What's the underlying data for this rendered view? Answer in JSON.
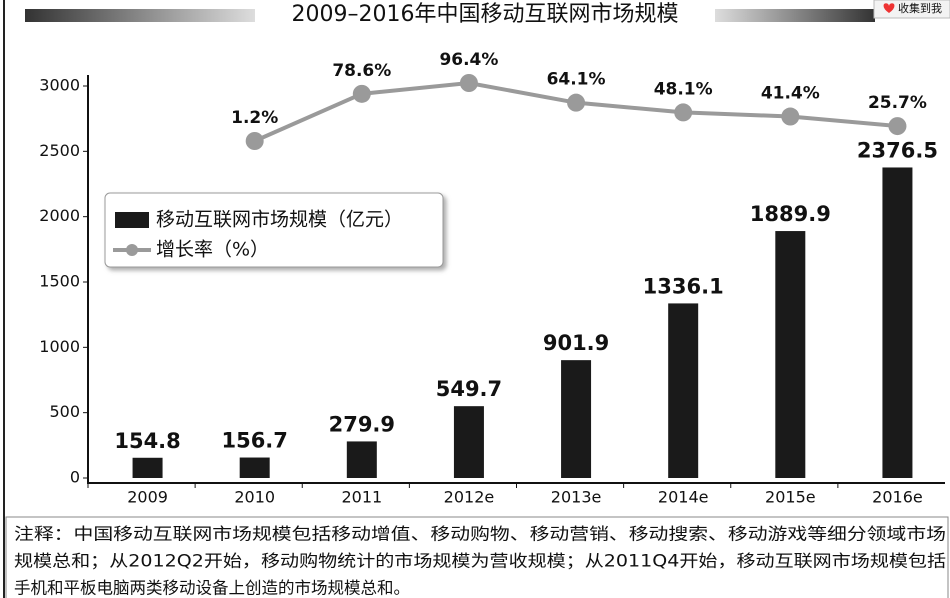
{
  "chart_data": {
    "type": "bar",
    "title": "2009–2016年中国移动互联网市场规模",
    "share_button": "收集到我",
    "categories": [
      "2009",
      "2010",
      "2011",
      "2012e",
      "2013e",
      "2014e",
      "2015e",
      "2016e"
    ],
    "series": [
      {
        "name": "移动互联网市场规模（亿元）",
        "type": "bar",
        "color": "#1a1a1a",
        "values": [
          154.8,
          156.7,
          279.9,
          549.7,
          901.9,
          1336.1,
          1889.9,
          2376.5
        ]
      },
      {
        "name": "增长率（%）",
        "type": "line",
        "color": "#9a9a9a",
        "values": [
          null,
          1.2,
          78.6,
          96.4,
          64.1,
          48.1,
          41.4,
          25.7
        ],
        "value_labels": [
          null,
          "1.2%",
          "78.6%",
          "96.4%",
          "64.1%",
          "48.1%",
          "41.4%",
          "25.7%"
        ]
      }
    ],
    "ylim": [
      0,
      3000
    ],
    "yticks": [
      0,
      500,
      1000,
      1500,
      2000,
      2500,
      3000
    ],
    "note": [
      "注释：中国移动互联网市场规模包括移动增值、移动购物、移动营销、移动搜索、移动游戏等细分领域市场",
      "规模总和；从2012Q2开始，移动购物统计的市场规模为营收规模；从2011Q4开始，移动互联网市场规模包括",
      "手机和平板电脑两类移动设备上创造的市场规模总和。"
    ]
  }
}
